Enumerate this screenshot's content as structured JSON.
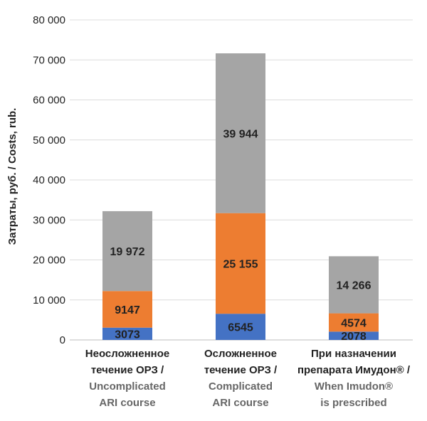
{
  "chart_data": {
    "type": "bar",
    "stacked": true,
    "ylabel": "Затраты, руб. / Costs, rub.",
    "ylim": [
      0,
      80000
    ],
    "yticks": [
      0,
      10000,
      20000,
      30000,
      40000,
      50000,
      60000,
      70000,
      80000
    ],
    "ytick_labels": [
      "0",
      "10 000",
      "20 000",
      "30 000",
      "40 000",
      "50 000",
      "60 000",
      "70 000",
      "80 000"
    ],
    "grid": true,
    "categories": [
      {
        "ru": [
          "Неосложненное",
          "течение ОРЗ /"
        ],
        "en": [
          "Uncomplicated",
          "ARI course"
        ]
      },
      {
        "ru": [
          "Осложненное",
          "течение ОРЗ /"
        ],
        "en": [
          "Complicated",
          "ARI course"
        ]
      },
      {
        "ru": [
          "При назначении",
          "препарата Имудон® /"
        ],
        "en": [
          "When Imudon®",
          "is prescribed"
        ]
      }
    ],
    "series": [
      {
        "color": "#4472c4",
        "values": [
          3073,
          6545,
          2078
        ],
        "labels": [
          "3073",
          "6545",
          "2078"
        ]
      },
      {
        "color": "#ed7d31",
        "values": [
          9147,
          25155,
          4574
        ],
        "labels": [
          "9147",
          "25 155",
          "4574"
        ]
      },
      {
        "color": "#a5a5a5",
        "values": [
          19972,
          39944,
          14266
        ],
        "labels": [
          "19 972",
          "39 944",
          "14 266"
        ]
      }
    ]
  }
}
